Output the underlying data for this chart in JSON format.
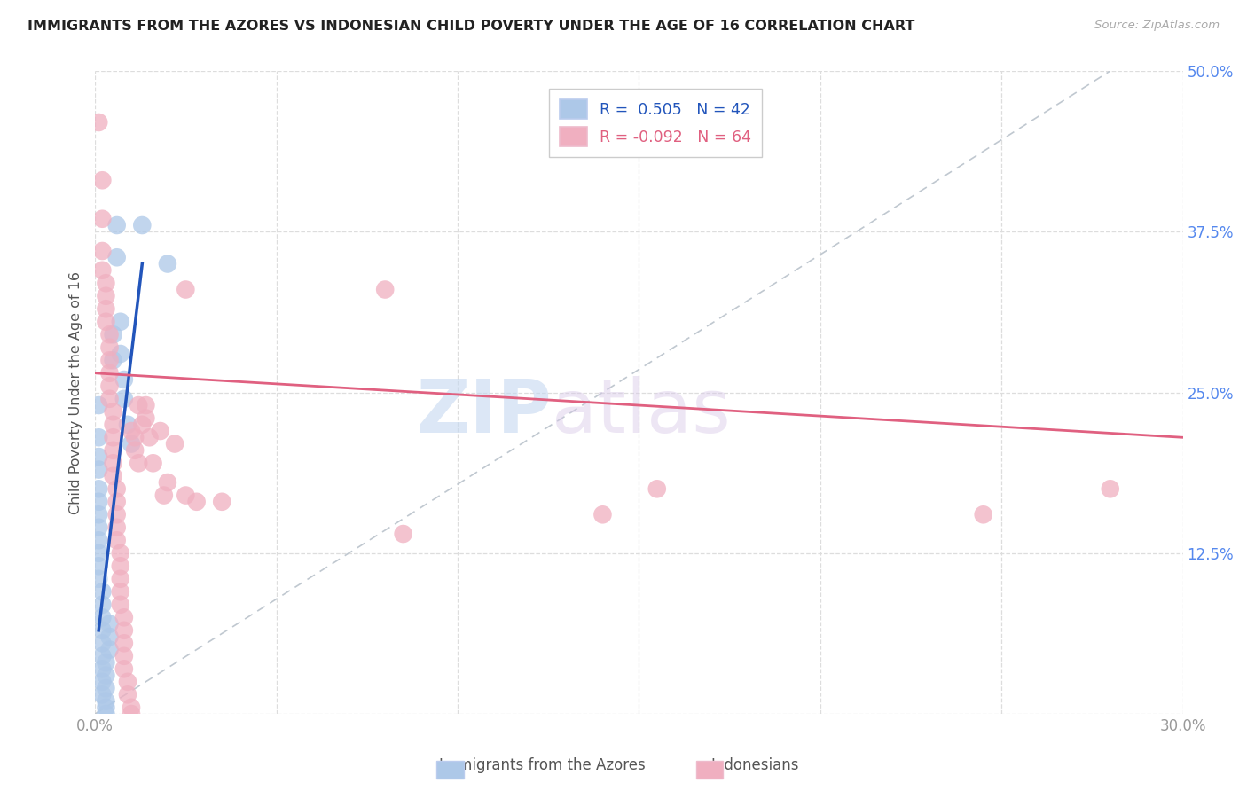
{
  "title": "IMMIGRANTS FROM THE AZORES VS INDONESIAN CHILD POVERTY UNDER THE AGE OF 16 CORRELATION CHART",
  "source": "Source: ZipAtlas.com",
  "ylabel": "Child Poverty Under the Age of 16",
  "x_min": 0.0,
  "x_max": 0.3,
  "y_min": 0.0,
  "y_max": 0.5,
  "x_ticks": [
    0.0,
    0.05,
    0.1,
    0.15,
    0.2,
    0.25,
    0.3
  ],
  "x_tick_labels": [
    "0.0%",
    "",
    "",
    "",
    "",
    "",
    "30.0%"
  ],
  "y_ticks": [
    0.0,
    0.125,
    0.25,
    0.375,
    0.5
  ],
  "y_tick_labels": [
    "",
    "12.5%",
    "25.0%",
    "37.5%",
    "50.0%"
  ],
  "legend_r_blue": " 0.505",
  "legend_n_blue": "42",
  "legend_r_pink": "-0.092",
  "legend_n_pink": "64",
  "blue_color": "#adc8e8",
  "pink_color": "#f0afc0",
  "blue_line_color": "#2255bb",
  "pink_line_color": "#e06080",
  "watermark_zip": "ZIP",
  "watermark_atlas": "atlas",
  "blue_scatter": [
    [
      0.001,
      0.24
    ],
    [
      0.001,
      0.215
    ],
    [
      0.001,
      0.2
    ],
    [
      0.001,
      0.19
    ],
    [
      0.001,
      0.175
    ],
    [
      0.001,
      0.165
    ],
    [
      0.001,
      0.155
    ],
    [
      0.001,
      0.145
    ],
    [
      0.001,
      0.135
    ],
    [
      0.001,
      0.125
    ],
    [
      0.001,
      0.115
    ],
    [
      0.001,
      0.105
    ],
    [
      0.002,
      0.095
    ],
    [
      0.002,
      0.085
    ],
    [
      0.002,
      0.075
    ],
    [
      0.002,
      0.065
    ],
    [
      0.002,
      0.055
    ],
    [
      0.002,
      0.045
    ],
    [
      0.002,
      0.035
    ],
    [
      0.002,
      0.025
    ],
    [
      0.002,
      0.015
    ],
    [
      0.003,
      0.005
    ],
    [
      0.003,
      0.0
    ],
    [
      0.003,
      0.01
    ],
    [
      0.003,
      0.02
    ],
    [
      0.003,
      0.03
    ],
    [
      0.003,
      0.04
    ],
    [
      0.004,
      0.05
    ],
    [
      0.004,
      0.06
    ],
    [
      0.004,
      0.07
    ],
    [
      0.005,
      0.295
    ],
    [
      0.005,
      0.275
    ],
    [
      0.006,
      0.38
    ],
    [
      0.006,
      0.355
    ],
    [
      0.007,
      0.305
    ],
    [
      0.007,
      0.28
    ],
    [
      0.008,
      0.26
    ],
    [
      0.008,
      0.245
    ],
    [
      0.009,
      0.225
    ],
    [
      0.01,
      0.21
    ],
    [
      0.013,
      0.38
    ],
    [
      0.02,
      0.35
    ]
  ],
  "pink_scatter": [
    [
      0.001,
      0.46
    ],
    [
      0.002,
      0.415
    ],
    [
      0.002,
      0.385
    ],
    [
      0.002,
      0.36
    ],
    [
      0.002,
      0.345
    ],
    [
      0.003,
      0.335
    ],
    [
      0.003,
      0.325
    ],
    [
      0.003,
      0.315
    ],
    [
      0.003,
      0.305
    ],
    [
      0.004,
      0.295
    ],
    [
      0.004,
      0.285
    ],
    [
      0.004,
      0.275
    ],
    [
      0.004,
      0.265
    ],
    [
      0.004,
      0.255
    ],
    [
      0.004,
      0.245
    ],
    [
      0.005,
      0.235
    ],
    [
      0.005,
      0.225
    ],
    [
      0.005,
      0.215
    ],
    [
      0.005,
      0.205
    ],
    [
      0.005,
      0.195
    ],
    [
      0.005,
      0.185
    ],
    [
      0.006,
      0.175
    ],
    [
      0.006,
      0.165
    ],
    [
      0.006,
      0.155
    ],
    [
      0.006,
      0.145
    ],
    [
      0.006,
      0.135
    ],
    [
      0.007,
      0.125
    ],
    [
      0.007,
      0.115
    ],
    [
      0.007,
      0.105
    ],
    [
      0.007,
      0.095
    ],
    [
      0.007,
      0.085
    ],
    [
      0.008,
      0.075
    ],
    [
      0.008,
      0.065
    ],
    [
      0.008,
      0.055
    ],
    [
      0.008,
      0.045
    ],
    [
      0.008,
      0.035
    ],
    [
      0.009,
      0.025
    ],
    [
      0.009,
      0.015
    ],
    [
      0.01,
      0.005
    ],
    [
      0.01,
      0.0
    ],
    [
      0.01,
      0.22
    ],
    [
      0.011,
      0.215
    ],
    [
      0.011,
      0.205
    ],
    [
      0.012,
      0.195
    ],
    [
      0.012,
      0.24
    ],
    [
      0.013,
      0.225
    ],
    [
      0.014,
      0.23
    ],
    [
      0.014,
      0.24
    ],
    [
      0.015,
      0.215
    ],
    [
      0.016,
      0.195
    ],
    [
      0.018,
      0.22
    ],
    [
      0.019,
      0.17
    ],
    [
      0.02,
      0.18
    ],
    [
      0.022,
      0.21
    ],
    [
      0.025,
      0.33
    ],
    [
      0.025,
      0.17
    ],
    [
      0.028,
      0.165
    ],
    [
      0.035,
      0.165
    ],
    [
      0.08,
      0.33
    ],
    [
      0.085,
      0.14
    ],
    [
      0.14,
      0.155
    ],
    [
      0.155,
      0.175
    ],
    [
      0.245,
      0.155
    ],
    [
      0.28,
      0.175
    ]
  ],
  "blue_line": [
    [
      0.001,
      0.065
    ],
    [
      0.013,
      0.35
    ]
  ],
  "pink_line": [
    [
      0.0,
      0.265
    ],
    [
      0.3,
      0.215
    ]
  ]
}
